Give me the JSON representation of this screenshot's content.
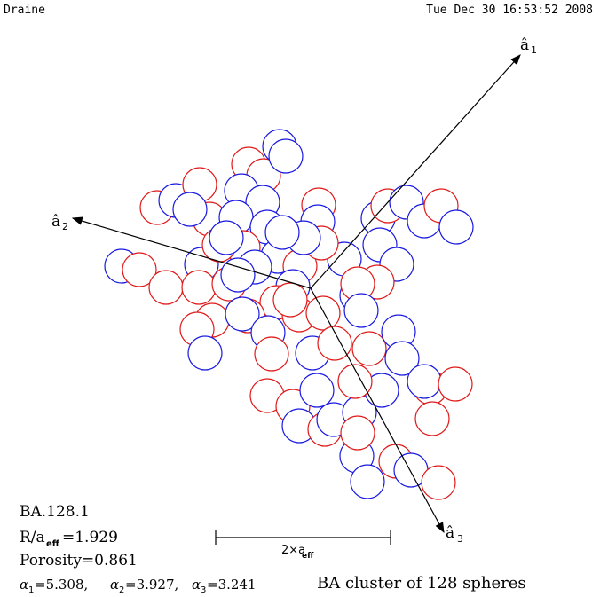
{
  "header": {
    "author": "Draine",
    "timestamp": "Tue Dec 30 16:53:52 2008"
  },
  "axes": {
    "a1": {
      "hat": "â",
      "sub": "1"
    },
    "a2": {
      "hat": "â",
      "sub": "2"
    },
    "a3": {
      "hat": "â",
      "sub": "3"
    }
  },
  "info": {
    "id": "BA.128.1",
    "r_over_aeff_label": "R/a",
    "r_over_aeff_sub": "eff",
    "r_over_aeff_value": "=1.929",
    "porosity": "Porosity=0.861",
    "alpha1": "=5.308,",
    "alpha2": "=3.927,",
    "alpha3": "=3.241",
    "alpha_symbol": "α"
  },
  "scale_bar": {
    "label_main": "2×a",
    "label_sub": "eff"
  },
  "caption": "BA cluster of 128 spheres",
  "colors": {
    "sphere_red": "#e01818",
    "sphere_blue": "#1818e0",
    "line": "#000000"
  }
}
